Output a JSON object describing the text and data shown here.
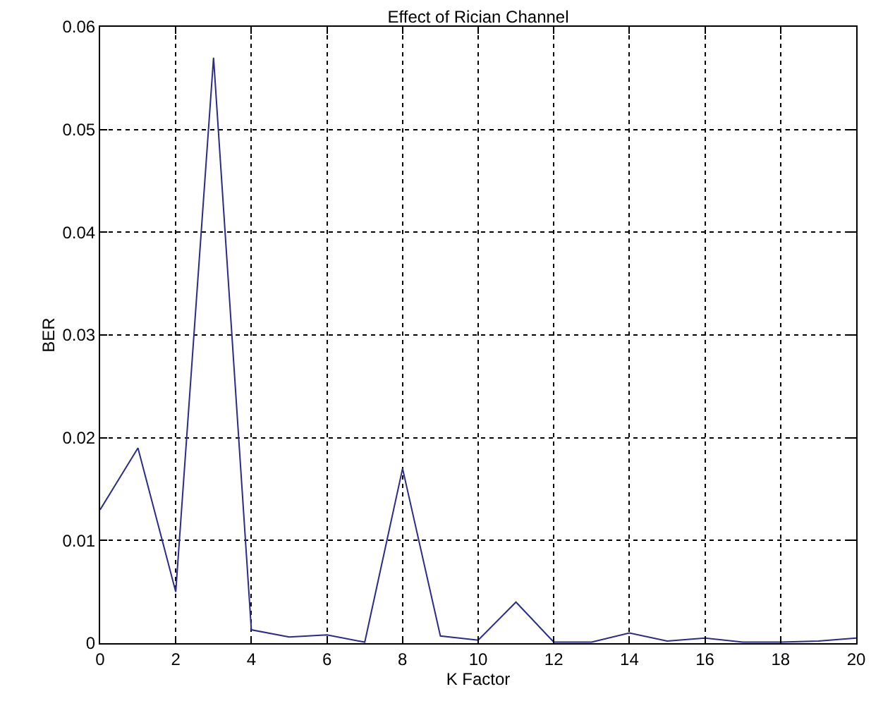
{
  "chart_data": {
    "type": "line",
    "title": "Effect of Rician Channel",
    "xlabel": "K Factor",
    "ylabel": "BER",
    "x": [
      0,
      1,
      2,
      3,
      4,
      5,
      6,
      7,
      8,
      9,
      10,
      11,
      12,
      13,
      14,
      15,
      16,
      17,
      18,
      19,
      20
    ],
    "series": [
      {
        "color": "#2b2b8c",
        "values": [
          0.013,
          0.019,
          0.005,
          0.057,
          0.0013,
          0.0006,
          0.0008,
          0.0001,
          0.017,
          0.0007,
          0.0003,
          0.004,
          0.0001,
          0.0001,
          0.001,
          0.0002,
          0.0005,
          0.0001,
          0.0001,
          0.0002,
          0.0005
        ]
      }
    ],
    "xlim": [
      0,
      20
    ],
    "xticks": [
      0,
      2,
      4,
      6,
      8,
      10,
      12,
      14,
      16,
      18,
      20
    ],
    "ylim": [
      0,
      0.06
    ],
    "yticks": [
      0,
      0.01,
      0.02,
      0.03,
      0.04,
      0.05,
      0.06
    ],
    "grid": true,
    "marker": "none",
    "line_style": "solid"
  }
}
